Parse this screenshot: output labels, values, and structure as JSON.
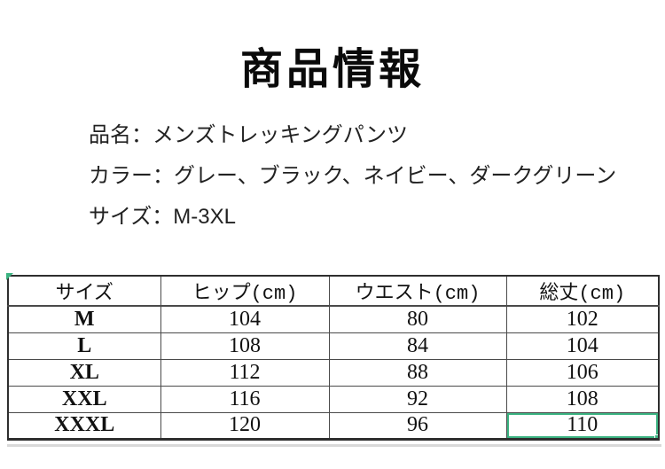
{
  "page": {
    "title": "商品情報"
  },
  "info": {
    "lines": [
      "品名：メンズトレッキングパンツ",
      "カラー：グレー、ブラック、ネイビー、ダークグリーン",
      "サイズ：M-3XL"
    ],
    "product_name": "メンズトレッキングパンツ",
    "colors_listed": [
      "グレー",
      "ブラック",
      "ネイビー",
      "ダークグリーン"
    ],
    "size_range": "M-3XL"
  },
  "size_table": {
    "headers": [
      "サイズ",
      "ヒップ(cm)",
      "ウエスト(cm)",
      "総丈(cm)"
    ],
    "rows": [
      [
        "M",
        "104",
        "80",
        "102"
      ],
      [
        "L",
        "108",
        "84",
        "104"
      ],
      [
        "XL",
        "112",
        "88",
        "106"
      ],
      [
        "XXL",
        "116",
        "92",
        "108"
      ],
      [
        "XXXL",
        "120",
        "96",
        "110"
      ]
    ],
    "selected_cell": {
      "row": "XXXL",
      "column": "総丈(cm)",
      "value": "110"
    }
  },
  "colors": {
    "selection_green": "#3cb482",
    "text": "#1f1f1f",
    "table_border": "#2e2e2e",
    "background": "#ffffff"
  }
}
